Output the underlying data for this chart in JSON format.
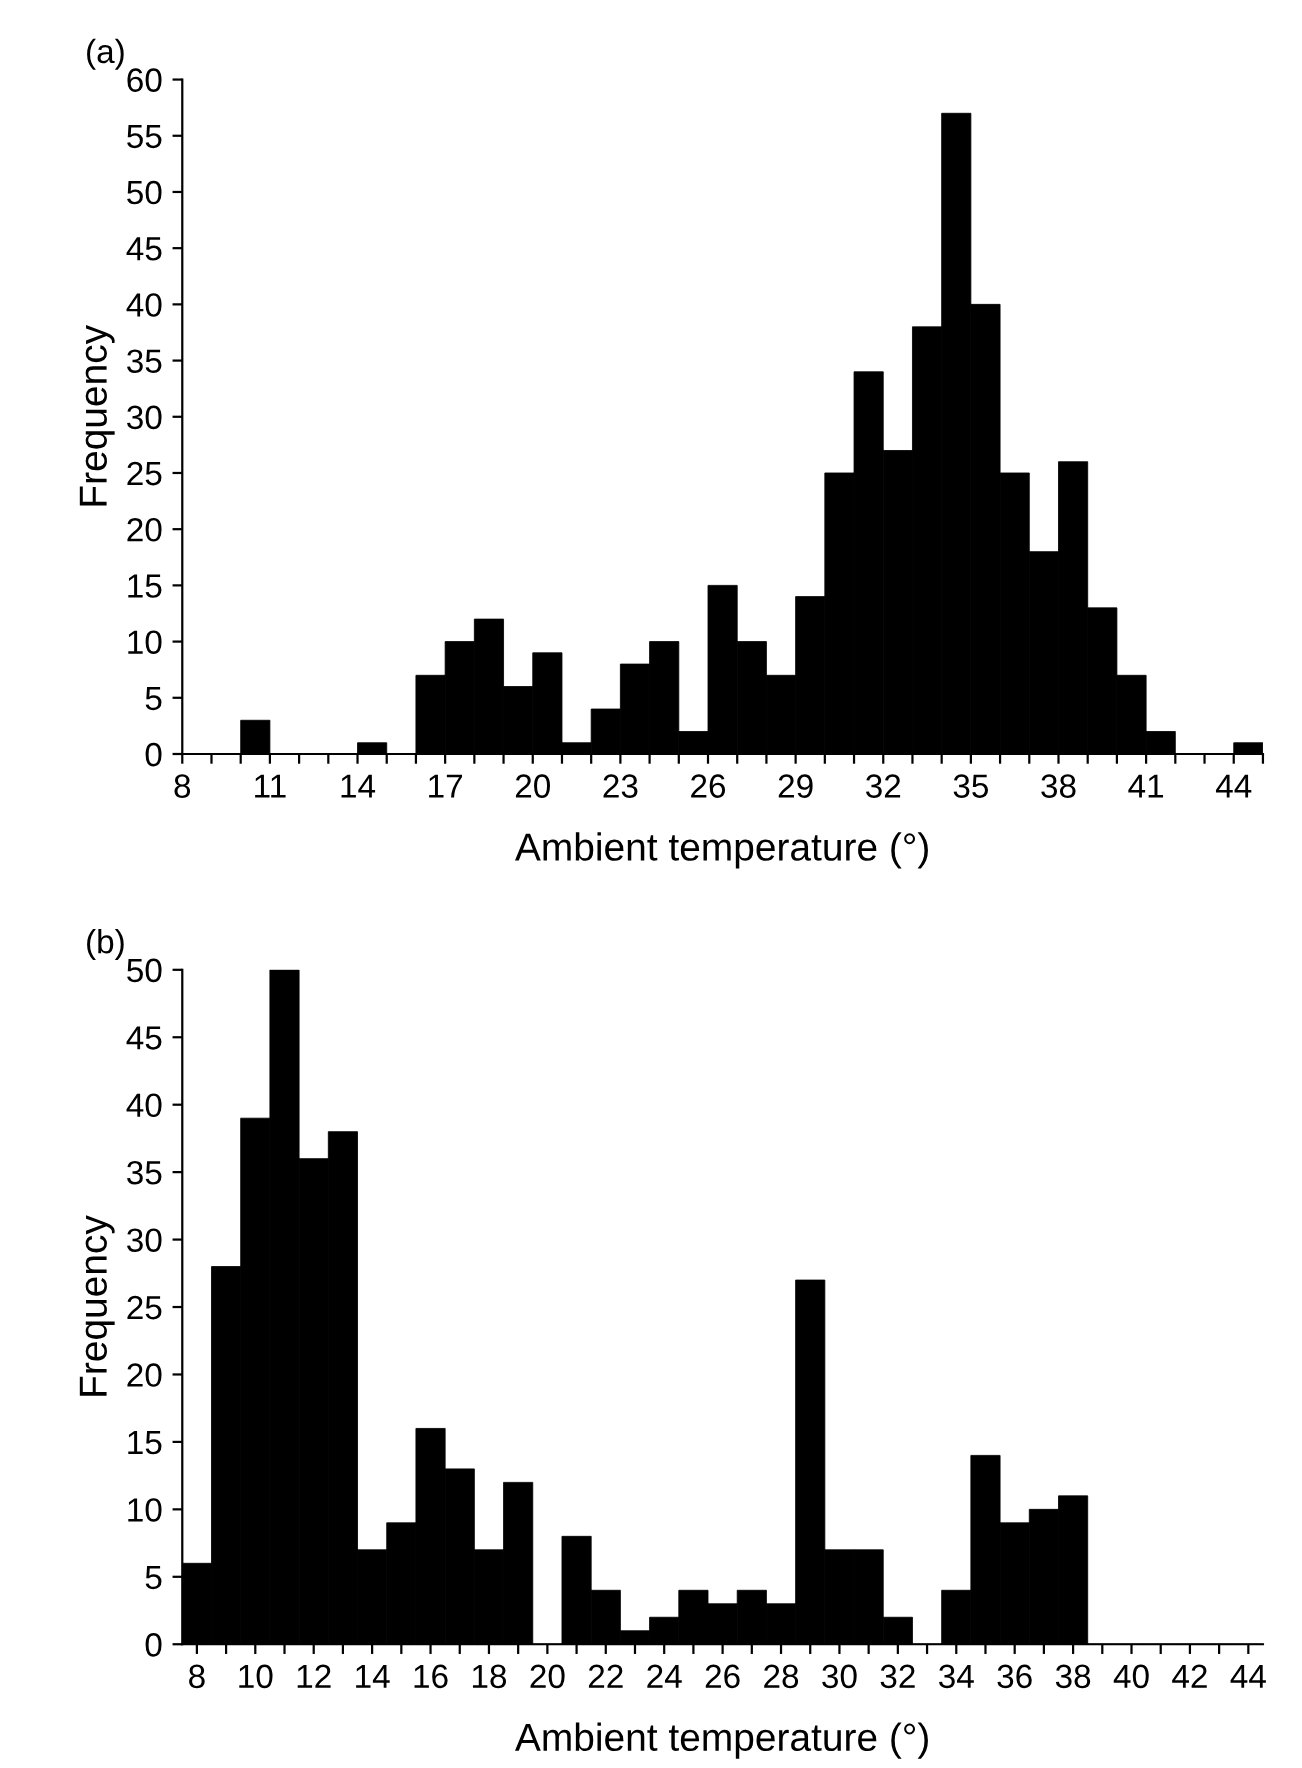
{
  "chart_data": [
    {
      "type": "histogram",
      "title": "(a)",
      "xlabel": "Ambient temperature (°)",
      "ylabel": "Frequency",
      "color": "#000000",
      "bins": [
        8,
        9,
        10,
        11,
        12,
        13,
        14,
        15,
        16,
        17,
        18,
        19,
        20,
        21,
        22,
        23,
        24,
        25,
        26,
        27,
        28,
        29,
        30,
        31,
        32,
        33,
        34,
        35,
        36,
        37,
        38,
        39,
        40,
        41,
        42,
        43,
        44,
        45
      ],
      "values": [
        0,
        0,
        3,
        0,
        0,
        0,
        1,
        0,
        7,
        10,
        12,
        6,
        9,
        1,
        4,
        8,
        10,
        2,
        15,
        10,
        7,
        14,
        25,
        34,
        27,
        38,
        57,
        40,
        25,
        18,
        26,
        13,
        7,
        2,
        0,
        0,
        1
      ],
      "xlim": [
        8,
        45
      ],
      "xticks": [
        8,
        {
          "value": 9,
          "label": null
        },
        {
          "value": 10,
          "label": null
        },
        11,
        {
          "value": 12,
          "label": null
        },
        {
          "value": 13,
          "label": null
        },
        14,
        {
          "value": 15,
          "label": null
        },
        {
          "value": 16,
          "label": null
        },
        17,
        {
          "value": 18,
          "label": null
        },
        {
          "value": 19,
          "label": null
        },
        20,
        {
          "value": 21,
          "label": null
        },
        {
          "value": 22,
          "label": null
        },
        23,
        {
          "value": 24,
          "label": null
        },
        {
          "value": 25,
          "label": null
        },
        26,
        {
          "value": 27,
          "label": null
        },
        {
          "value": 28,
          "label": null
        },
        29,
        {
          "value": 30,
          "label": null
        },
        {
          "value": 31,
          "label": null
        },
        32,
        {
          "value": 33,
          "label": null
        },
        {
          "value": 34,
          "label": null
        },
        35,
        {
          "value": 36,
          "label": null
        },
        {
          "value": 37,
          "label": null
        },
        38,
        {
          "value": 39,
          "label": null
        },
        {
          "value": 40,
          "label": null
        },
        41,
        {
          "value": 42,
          "label": null
        },
        {
          "value": 43,
          "label": null
        },
        44,
        {
          "value": 45,
          "label": null
        }
      ],
      "ylim": [
        0,
        60
      ],
      "yticks": [
        0,
        5,
        10,
        15,
        20,
        25,
        30,
        35,
        40,
        45,
        50,
        55,
        60
      ],
      "grid": false,
      "legend": false
    },
    {
      "type": "histogram",
      "title": "(b)",
      "xlabel": "Ambient temperature (°)",
      "ylabel": "Frequency",
      "color": "#000000",
      "bins": [
        7.5,
        8.5,
        9.5,
        10.5,
        11.5,
        12.5,
        13.5,
        14.5,
        15.5,
        16.5,
        17.5,
        18.5,
        19.5,
        20.5,
        21.5,
        22.5,
        23.5,
        24.5,
        25.5,
        26.5,
        27.5,
        28.5,
        29.5,
        30.5,
        31.5,
        32.5,
        33.5,
        34.5,
        35.5,
        36.5,
        37.5,
        38.5,
        39.5,
        40.5,
        41.5,
        42.5,
        43.5,
        44.5
      ],
      "values": [
        6,
        28,
        39,
        50,
        36,
        38,
        7,
        9,
        16,
        13,
        7,
        12,
        0,
        8,
        4,
        1,
        2,
        4,
        3,
        4,
        3,
        27,
        7,
        7,
        2,
        0,
        4,
        14,
        9,
        10,
        11,
        0,
        0,
        0,
        0,
        0,
        0
      ],
      "xlim": [
        7.5,
        44.5
      ],
      "xticks": [
        8,
        {
          "value": 9,
          "label": null
        },
        10,
        {
          "value": 11,
          "label": null
        },
        12,
        {
          "value": 13,
          "label": null
        },
        14,
        {
          "value": 15,
          "label": null
        },
        16,
        {
          "value": 17,
          "label": null
        },
        18,
        {
          "value": 19,
          "label": null
        },
        20,
        {
          "value": 21,
          "label": null
        },
        22,
        {
          "value": 23,
          "label": null
        },
        24,
        {
          "value": 25,
          "label": null
        },
        26,
        {
          "value": 27,
          "label": null
        },
        28,
        {
          "value": 29,
          "label": null
        },
        30,
        {
          "value": 31,
          "label": null
        },
        32,
        {
          "value": 33,
          "label": null
        },
        34,
        {
          "value": 35,
          "label": null
        },
        36,
        {
          "value": 37,
          "label": null
        },
        38,
        {
          "value": 39,
          "label": null
        },
        40,
        {
          "value": 41,
          "label": null
        },
        42,
        {
          "value": 43,
          "label": null
        },
        44
      ],
      "ylim": [
        0,
        50
      ],
      "yticks": [
        0,
        5,
        10,
        15,
        20,
        25,
        30,
        35,
        40,
        45,
        50
      ],
      "grid": false,
      "legend": false
    }
  ]
}
